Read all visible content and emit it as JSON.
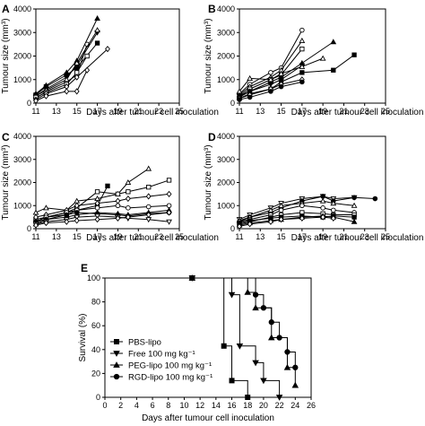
{
  "figure": {
    "panel_labels": [
      "A",
      "B",
      "C",
      "D",
      "E"
    ]
  },
  "chart_data": [
    {
      "panel": "A",
      "type": "line",
      "xlabel": "Days after tumour cell inoculation",
      "ylabel": "Tumour size (mm³)",
      "xlim": [
        11,
        25
      ],
      "ylim": [
        0,
        4000
      ],
      "xticks": [
        11,
        13,
        15,
        17,
        19,
        21,
        23,
        25
      ],
      "yticks": [
        0,
        1000,
        2000,
        3000,
        4000
      ],
      "series": [
        {
          "marker": "filled-triangle",
          "x": [
            11,
            12,
            14,
            15,
            17
          ],
          "y": [
            400,
            750,
            1300,
            1800,
            3600
          ]
        },
        {
          "marker": "filled-square",
          "x": [
            11,
            12,
            14,
            15,
            17
          ],
          "y": [
            350,
            700,
            1200,
            1500,
            2550
          ]
        },
        {
          "marker": "filled-down-triangle",
          "x": [
            11,
            12,
            14,
            15,
            17
          ],
          "y": [
            300,
            600,
            1100,
            1600,
            3000
          ]
        },
        {
          "marker": "open-circle",
          "x": [
            11,
            12,
            14,
            15,
            16
          ],
          "y": [
            200,
            500,
            900,
            1200,
            2500
          ]
        },
        {
          "marker": "open-triangle",
          "x": [
            11,
            12,
            14,
            15,
            17
          ],
          "y": [
            300,
            550,
            1000,
            1700,
            3100
          ]
        },
        {
          "marker": "open-square",
          "x": [
            11,
            12,
            14,
            15,
            16
          ],
          "y": [
            250,
            450,
            800,
            1300,
            2000
          ]
        },
        {
          "marker": "open-diamond",
          "x": [
            11,
            12,
            14,
            15,
            18
          ],
          "y": [
            150,
            400,
            700,
            1100,
            2300
          ]
        },
        {
          "marker": "open-diamond",
          "x": [
            11,
            12,
            14,
            15,
            16
          ],
          "y": [
            100,
            300,
            500,
            500,
            1400
          ]
        }
      ]
    },
    {
      "panel": "B",
      "type": "line",
      "xlabel": "Days after tumour cell inoculation",
      "ylabel": "Tumour size (mm³)",
      "xlim": [
        11,
        25
      ],
      "ylim": [
        0,
        4000
      ],
      "xticks": [
        11,
        13,
        15,
        17,
        19,
        21,
        23,
        25
      ],
      "yticks": [
        0,
        1000,
        2000,
        3000,
        4000
      ],
      "series": [
        {
          "marker": "open-circle",
          "x": [
            11,
            12,
            14,
            15,
            17
          ],
          "y": [
            400,
            800,
            1300,
            1500,
            3100
          ]
        },
        {
          "marker": "open-triangle",
          "x": [
            11,
            12,
            14,
            15,
            17
          ],
          "y": [
            350,
            700,
            1100,
            1400,
            2650
          ]
        },
        {
          "marker": "open-square",
          "x": [
            11,
            12,
            14,
            15,
            17
          ],
          "y": [
            300,
            600,
            1000,
            1200,
            2300
          ]
        },
        {
          "marker": "filled-triangle",
          "x": [
            11,
            12,
            14,
            15,
            17,
            20
          ],
          "y": [
            250,
            500,
            900,
            1100,
            1700,
            2600
          ]
        },
        {
          "marker": "filled-square",
          "x": [
            11,
            12,
            14,
            15,
            17,
            20,
            22
          ],
          "y": [
            200,
            400,
            600,
            900,
            1300,
            1400,
            2050
          ]
        },
        {
          "marker": "filled-down-triangle",
          "x": [
            11,
            12,
            14,
            15,
            17
          ],
          "y": [
            300,
            500,
            800,
            1000,
            1600
          ]
        },
        {
          "marker": "open-diamond",
          "x": [
            11,
            12,
            14,
            15,
            17
          ],
          "y": [
            200,
            350,
            600,
            800,
            1000
          ]
        },
        {
          "marker": "filled-circle",
          "x": [
            11,
            12,
            14,
            15,
            17
          ],
          "y": [
            150,
            250,
            500,
            700,
            900
          ]
        },
        {
          "marker": "open-triangle",
          "x": [
            11,
            12,
            14,
            15,
            17,
            19
          ],
          "y": [
            500,
            1050,
            1000,
            1250,
            1550,
            1900
          ]
        }
      ]
    },
    {
      "panel": "C",
      "type": "line",
      "xlabel": "Days after tumour cell inoculation",
      "ylabel": "Tumour size (mm³)",
      "xlim": [
        11,
        25
      ],
      "ylim": [
        0,
        4000
      ],
      "xticks": [
        11,
        13,
        15,
        17,
        19,
        21,
        23,
        25
      ],
      "yticks": [
        0,
        1000,
        2000,
        3000,
        4000
      ],
      "series": [
        {
          "marker": "open-triangle",
          "x": [
            11,
            12,
            14,
            15,
            17,
            19,
            20,
            22
          ],
          "y": [
            700,
            900,
            800,
            1200,
            1300,
            1500,
            2000,
            2600
          ]
        },
        {
          "marker": "open-square",
          "x": [
            11,
            12,
            14,
            15,
            17,
            19,
            20,
            22,
            24
          ],
          "y": [
            400,
            500,
            700,
            900,
            1600,
            1500,
            1600,
            1800,
            2100
          ]
        },
        {
          "marker": "filled-square",
          "x": [
            11,
            12,
            14,
            15,
            17,
            18
          ],
          "y": [
            300,
            500,
            600,
            800,
            1000,
            1850
          ]
        },
        {
          "marker": "open-diamond",
          "x": [
            11,
            12,
            14,
            15,
            17,
            19,
            20,
            22,
            24
          ],
          "y": [
            500,
            600,
            800,
            1000,
            1100,
            1200,
            1300,
            1400,
            1500
          ]
        },
        {
          "marker": "open-circle",
          "x": [
            11,
            12,
            14,
            15,
            17,
            19,
            20,
            22,
            24
          ],
          "y": [
            300,
            500,
            700,
            800,
            900,
            1000,
            900,
            950,
            1000
          ]
        },
        {
          "marker": "filled-triangle",
          "x": [
            11,
            12,
            14,
            15,
            17,
            19,
            20,
            22,
            24
          ],
          "y": [
            200,
            400,
            500,
            600,
            700,
            650,
            600,
            700,
            800
          ]
        },
        {
          "marker": "filled-circle",
          "x": [
            11,
            12,
            14,
            15,
            17,
            19,
            20,
            22,
            24
          ],
          "y": [
            300,
            400,
            600,
            700,
            650,
            600,
            550,
            650,
            700
          ]
        },
        {
          "marker": "open-down-triangle",
          "x": [
            11,
            12,
            14,
            15,
            17,
            19,
            20,
            22,
            24
          ],
          "y": [
            200,
            300,
            400,
            500,
            550,
            500,
            450,
            400,
            300
          ]
        },
        {
          "marker": "open-diamond",
          "x": [
            11,
            12,
            14,
            15,
            17,
            19,
            20,
            22,
            24
          ],
          "y": [
            150,
            250,
            300,
            350,
            400,
            450,
            500,
            600,
            700
          ]
        }
      ]
    },
    {
      "panel": "D",
      "type": "line",
      "xlabel": "Days after tumour cell inoculation",
      "ylabel": "Tumour size (mm³)",
      "xlim": [
        11,
        25
      ],
      "ylim": [
        0,
        4000
      ],
      "xticks": [
        11,
        13,
        15,
        17,
        19,
        21,
        23,
        25
      ],
      "yticks": [
        0,
        1000,
        2000,
        3000,
        4000
      ],
      "series": [
        {
          "marker": "open-down-triangle",
          "x": [
            11,
            12,
            14,
            15,
            17,
            19,
            20,
            22
          ],
          "y": [
            400,
            600,
            900,
            1100,
            1300,
            1400,
            1300,
            1350
          ]
        },
        {
          "marker": "filled-circle",
          "x": [
            11,
            12,
            14,
            15,
            17,
            19,
            20,
            22,
            24
          ],
          "y": [
            300,
            500,
            700,
            900,
            1200,
            1400,
            1200,
            1350,
            1300
          ]
        },
        {
          "marker": "open-triangle",
          "x": [
            11,
            12,
            14,
            15,
            17,
            19,
            20,
            22
          ],
          "y": [
            350,
            500,
            800,
            1000,
            1100,
            1200,
            1100,
            1000
          ]
        },
        {
          "marker": "open-circle",
          "x": [
            11,
            12,
            14,
            15,
            17,
            19,
            20,
            22
          ],
          "y": [
            300,
            400,
            600,
            800,
            1000,
            900,
            800,
            700
          ]
        },
        {
          "marker": "open-square",
          "x": [
            11,
            12,
            14,
            15,
            17,
            19,
            20,
            22
          ],
          "y": [
            200,
            300,
            500,
            600,
            700,
            650,
            600,
            600
          ]
        },
        {
          "marker": "filled-square",
          "x": [
            11,
            12,
            14,
            15,
            17,
            19,
            20,
            22
          ],
          "y": [
            250,
            350,
            450,
            500,
            550,
            500,
            550,
            500
          ]
        },
        {
          "marker": "filled-triangle",
          "x": [
            11,
            12,
            14,
            15,
            17,
            19,
            20,
            22
          ],
          "y": [
            150,
            250,
            350,
            400,
            500,
            550,
            500,
            300
          ]
        },
        {
          "marker": "open-diamond",
          "x": [
            11,
            12,
            14,
            15,
            17,
            19,
            20
          ],
          "y": [
            100,
            200,
            300,
            400,
            450,
            500,
            450
          ]
        }
      ]
    },
    {
      "panel": "E",
      "type": "line",
      "xlabel": "Days after tumour cell inoculation",
      "ylabel": "Survival (%)",
      "xlim": [
        0,
        26
      ],
      "ylim": [
        0,
        100
      ],
      "xticks": [
        0,
        2,
        4,
        6,
        8,
        10,
        12,
        14,
        16,
        18,
        20,
        22,
        24,
        26
      ],
      "yticks": [
        0,
        20,
        40,
        60,
        80,
        100
      ],
      "legend_position": "bottom-left",
      "series": [
        {
          "name": "PBS-lipo",
          "marker": "filled-square",
          "x": [
            11,
            15,
            16,
            18
          ],
          "y": [
            100,
            43,
            14,
            0
          ]
        },
        {
          "name": "Free 100 mg kg⁻¹",
          "marker": "filled-down-triangle",
          "x": [
            11,
            16,
            17,
            19,
            20,
            22
          ],
          "y": [
            100,
            86,
            43,
            29,
            14,
            0
          ]
        },
        {
          "name": "PEG-lipo 100 mg kg⁻¹",
          "marker": "filled-triangle",
          "x": [
            11,
            18,
            19,
            21,
            23,
            24
          ],
          "y": [
            100,
            88,
            75,
            50,
            25,
            10
          ]
        },
        {
          "name": "RGD-lipo 100 mg kg⁻¹",
          "marker": "filled-circle",
          "x": [
            11,
            19,
            20,
            21,
            22,
            23,
            24
          ],
          "y": [
            100,
            86,
            75,
            63,
            50,
            38,
            25
          ]
        }
      ]
    }
  ]
}
